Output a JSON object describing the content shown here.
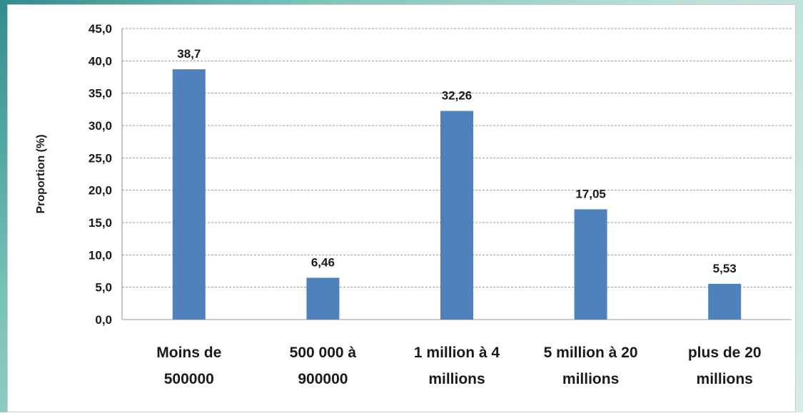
{
  "chart_data": {
    "type": "bar",
    "title": "",
    "xlabel": "",
    "ylabel": "Proportion (%)",
    "categories": [
      [
        "Moins de",
        "500000"
      ],
      [
        "500 000 à",
        "900000"
      ],
      [
        "1 million à 4",
        "millions"
      ],
      [
        "5 million à 20",
        "millions"
      ],
      [
        "plus de 20",
        "millions"
      ]
    ],
    "values": [
      38.7,
      6.46,
      32.26,
      17.05,
      5.53
    ],
    "value_labels": [
      "38,7",
      "6,46",
      "32,26",
      "17,05",
      "5,53"
    ],
    "ylim": [
      0,
      45
    ],
    "yticks": [
      0,
      5,
      10,
      15,
      20,
      25,
      30,
      35,
      40,
      45
    ],
    "ytick_labels": [
      "0,0",
      "5,0",
      "10,0",
      "15,0",
      "20,0",
      "25,0",
      "30,0",
      "35,0",
      "40,0",
      "45,0"
    ],
    "grid": "horizontal-dashed",
    "legend": "none",
    "bar_color": "#4f81bd",
    "grid_color": "#9a9a9a"
  }
}
